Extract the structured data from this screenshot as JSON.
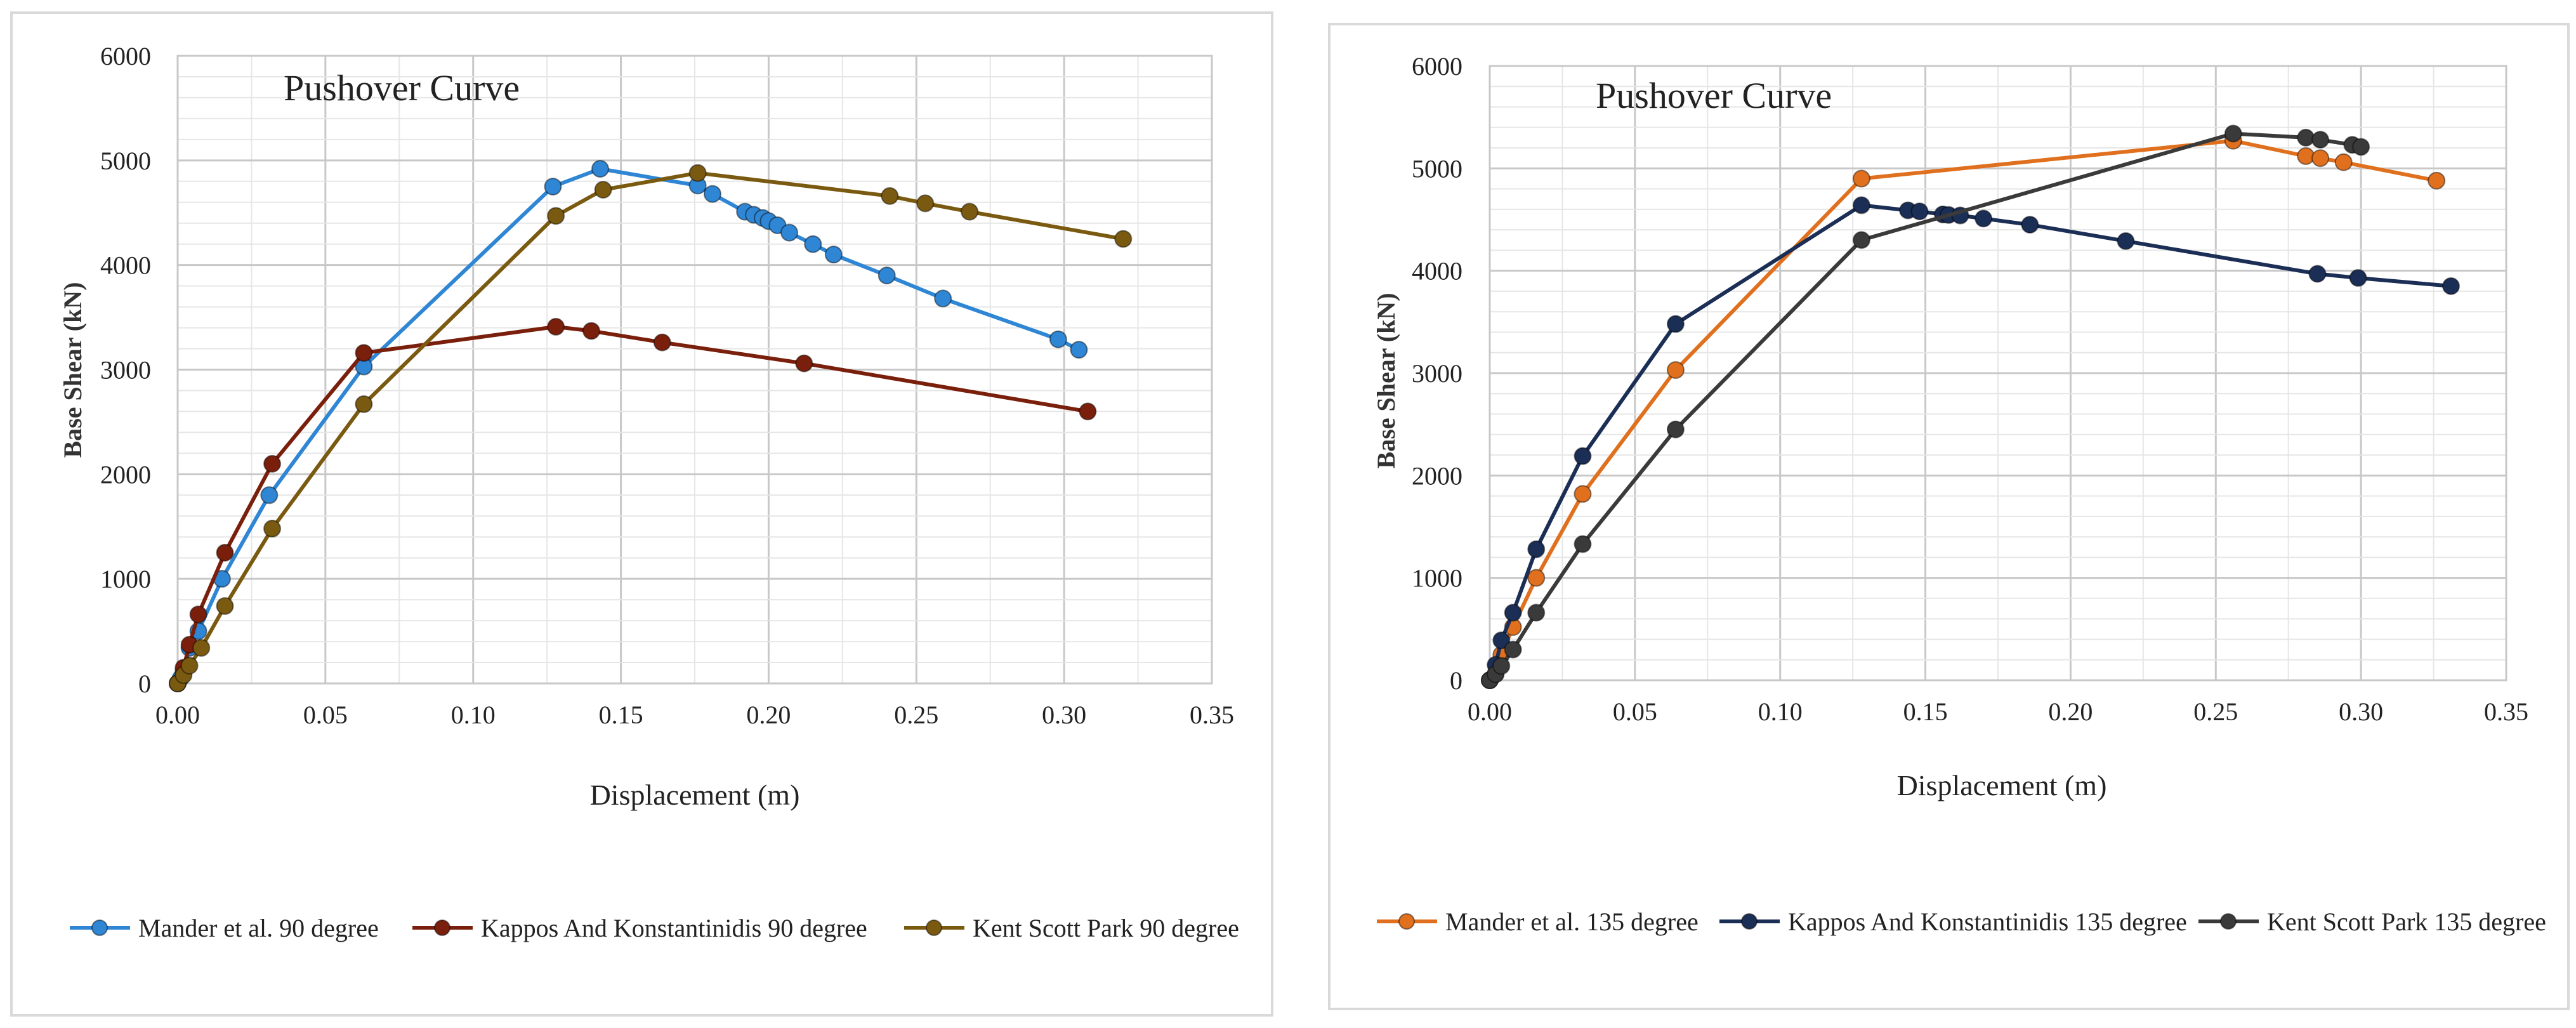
{
  "chart_data": [
    {
      "type": "line",
      "title": "Pushover Curve",
      "xlabel": "Displacement (m)",
      "ylabel": "Base Shear (kN)",
      "xlim": [
        0,
        0.35
      ],
      "ylim": [
        0,
        6000
      ],
      "x_ticks": [
        0,
        0.05,
        0.1,
        0.15,
        0.2,
        0.25,
        0.3,
        0.35
      ],
      "x_tick_labels": [
        "0.00",
        "0.05",
        "0.10",
        "0.15",
        "0.20",
        "0.25",
        "0.30",
        "0.35"
      ],
      "y_ticks": [
        0,
        1000,
        2000,
        3000,
        4000,
        5000,
        6000
      ],
      "y_tick_labels": [
        "0",
        "1000",
        "2000",
        "3000",
        "4000",
        "5000",
        "6000"
      ],
      "grid": true,
      "legend_position": "bottom",
      "series": [
        {
          "name": "Mander et al. 90 degree",
          "color": "#2e86d4",
          "points": [
            [
              0,
              0
            ],
            [
              0.001,
              50
            ],
            [
              0.002,
              120
            ],
            [
              0.004,
              340
            ],
            [
              0.007,
              500
            ],
            [
              0.015,
              1000
            ],
            [
              0.031,
              1800
            ],
            [
              0.063,
              3030
            ],
            [
              0.127,
              4750
            ],
            [
              0.143,
              4920
            ],
            [
              0.176,
              4760
            ],
            [
              0.181,
              4680
            ],
            [
              0.192,
              4510
            ],
            [
              0.195,
              4480
            ],
            [
              0.198,
              4450
            ],
            [
              0.2,
              4420
            ],
            [
              0.203,
              4380
            ],
            [
              0.207,
              4310
            ],
            [
              0.215,
              4200
            ],
            [
              0.222,
              4100
            ],
            [
              0.24,
              3900
            ],
            [
              0.259,
              3680
            ],
            [
              0.298,
              3290
            ],
            [
              0.305,
              3190
            ]
          ]
        },
        {
          "name": "Kappos And Konstantinidis 90 degree",
          "color": "#7a1f0c",
          "points": [
            [
              0,
              0
            ],
            [
              0.002,
              150
            ],
            [
              0.004,
              370
            ],
            [
              0.007,
              660
            ],
            [
              0.016,
              1250
            ],
            [
              0.032,
              2100
            ],
            [
              0.063,
              3160
            ],
            [
              0.128,
              3410
            ],
            [
              0.14,
              3370
            ],
            [
              0.164,
              3260
            ],
            [
              0.212,
              3060
            ],
            [
              0.308,
              2600
            ]
          ]
        },
        {
          "name": "Kent Scott Park 90 degree",
          "color": "#7a5a10",
          "points": [
            [
              0,
              0
            ],
            [
              0.002,
              80
            ],
            [
              0.004,
              170
            ],
            [
              0.008,
              340
            ],
            [
              0.016,
              740
            ],
            [
              0.032,
              1480
            ],
            [
              0.063,
              2670
            ],
            [
              0.128,
              4470
            ],
            [
              0.144,
              4720
            ],
            [
              0.176,
              4880
            ],
            [
              0.241,
              4660
            ],
            [
              0.253,
              4590
            ],
            [
              0.268,
              4510
            ],
            [
              0.32,
              4250
            ]
          ]
        }
      ]
    },
    {
      "type": "line",
      "title": "Pushover Curve",
      "xlabel": "Displacement (m)",
      "ylabel": "Base Shear (kN)",
      "xlim": [
        0,
        0.35
      ],
      "ylim": [
        0,
        6000
      ],
      "x_ticks": [
        0,
        0.05,
        0.1,
        0.15,
        0.2,
        0.25,
        0.3,
        0.35
      ],
      "x_tick_labels": [
        "0.00",
        "0.05",
        "0.10",
        "0.15",
        "0.20",
        "0.25",
        "0.30",
        "0.35"
      ],
      "y_ticks": [
        0,
        1000,
        2000,
        3000,
        4000,
        5000,
        6000
      ],
      "y_tick_labels": [
        "0",
        "1000",
        "2000",
        "3000",
        "4000",
        "5000",
        "6000"
      ],
      "grid": true,
      "legend_position": "bottom",
      "series": [
        {
          "name": "Mander et al. 135 degree",
          "color": "#e0701e",
          "points": [
            [
              0,
              0
            ],
            [
              0.002,
              60
            ],
            [
              0.004,
              250
            ],
            [
              0.008,
              520
            ],
            [
              0.016,
              1000
            ],
            [
              0.032,
              1820
            ],
            [
              0.064,
              3030
            ],
            [
              0.128,
              4900
            ],
            [
              0.256,
              5270
            ],
            [
              0.281,
              5120
            ],
            [
              0.286,
              5100
            ],
            [
              0.294,
              5060
            ],
            [
              0.326,
              4880
            ]
          ]
        },
        {
          "name": "Kappos And Konstantinidis 135 degree",
          "color": "#1b2e55",
          "points": [
            [
              0,
              0
            ],
            [
              0.002,
              150
            ],
            [
              0.004,
              390
            ],
            [
              0.008,
              660
            ],
            [
              0.016,
              1280
            ],
            [
              0.032,
              2190
            ],
            [
              0.064,
              3480
            ],
            [
              0.128,
              4640
            ],
            [
              0.144,
              4590
            ],
            [
              0.148,
              4580
            ],
            [
              0.156,
              4550
            ],
            [
              0.158,
              4545
            ],
            [
              0.162,
              4540
            ],
            [
              0.17,
              4510
            ],
            [
              0.186,
              4450
            ],
            [
              0.219,
              4290
            ],
            [
              0.285,
              3970
            ],
            [
              0.299,
              3930
            ],
            [
              0.331,
              3850
            ]
          ]
        },
        {
          "name": "Kent Scott Park 135 degree",
          "color": "#3a3a3a",
          "points": [
            [
              0,
              0
            ],
            [
              0.002,
              60
            ],
            [
              0.004,
              140
            ],
            [
              0.008,
              300
            ],
            [
              0.016,
              660
            ],
            [
              0.032,
              1330
            ],
            [
              0.064,
              2450
            ],
            [
              0.128,
              4300
            ],
            [
              0.256,
              5340
            ],
            [
              0.281,
              5300
            ],
            [
              0.286,
              5280
            ],
            [
              0.297,
              5230
            ],
            [
              0.3,
              5210
            ]
          ]
        }
      ]
    }
  ]
}
